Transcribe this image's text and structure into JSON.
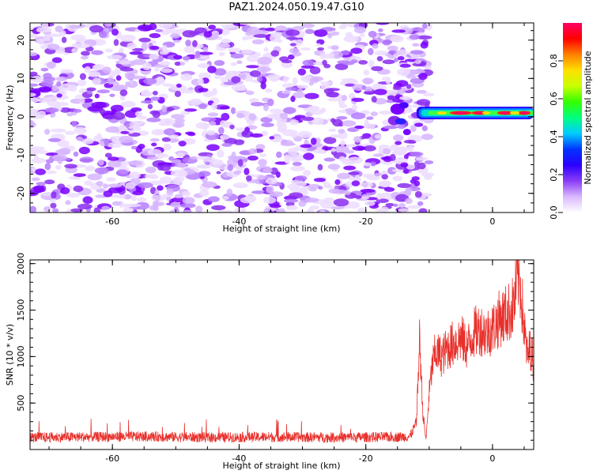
{
  "title": "PAZ1.2024.050.19.47.G10",
  "chart_data": [
    {
      "type": "heatmap",
      "xlabel": "Height of straight line (km)",
      "ylabel": "Frequency (Hz)",
      "xlim": [
        -73,
        6.5
      ],
      "ylim": [
        -25,
        24.5
      ],
      "xticks": [
        -60,
        -40,
        -20,
        0
      ],
      "yticks": [
        -20,
        -10,
        0,
        10,
        20
      ],
      "grid": false,
      "colorbar": {
        "label": "Normalized spectral amplitude",
        "ticks": [
          0.0,
          0.2,
          0.4,
          0.6,
          0.8
        ],
        "range": [
          0,
          1
        ],
        "colors": [
          "#ffffff",
          "#d9b8ff",
          "#8a3df5",
          "#2b00ff",
          "#0033ff",
          "#00ccff",
          "#00ff80",
          "#33ff00",
          "#c8ff00",
          "#ffe000",
          "#ff8000",
          "#ff0000",
          "#ff0066"
        ]
      },
      "features": [
        {
          "description_x": [
            -73,
            -12
          ],
          "noise_level": 0.15
        },
        {
          "x": [
            -12,
            6.5
          ],
          "frequency": 1.0,
          "amplitude_peak": 0.95
        }
      ]
    },
    {
      "type": "line",
      "xlabel": "Height of straight line (km)",
      "ylabel": "SNR (10 * v/v)",
      "xlim": [
        -73,
        6.5
      ],
      "ylim": [
        0,
        2040
      ],
      "xticks": [
        -60,
        -40,
        -20,
        0
      ],
      "yticks": [
        500,
        1000,
        1500,
        2000
      ],
      "grid": false,
      "color": "#e8302b",
      "series": [
        {
          "x": [
            -73,
            -65,
            -55,
            -45,
            -35,
            -25,
            -15,
            -13,
            -12,
            -11.5,
            -11,
            -10.5,
            -10,
            -9.5,
            -9,
            -8,
            -7,
            -6,
            -5,
            -4,
            -3,
            -2,
            -1,
            0,
            1,
            2,
            3,
            3.5,
            4,
            4.5,
            5,
            5.5,
            6,
            6.5
          ],
          "values": [
            130,
            135,
            140,
            130,
            135,
            130,
            135,
            140,
            300,
            1200,
            400,
            100,
            600,
            900,
            1050,
            1000,
            1100,
            1150,
            1200,
            1100,
            1250,
            1300,
            1250,
            1300,
            1400,
            1450,
            1500,
            1600,
            1900,
            1700,
            1300,
            1000,
            1100,
            900
          ]
        }
      ]
    }
  ]
}
